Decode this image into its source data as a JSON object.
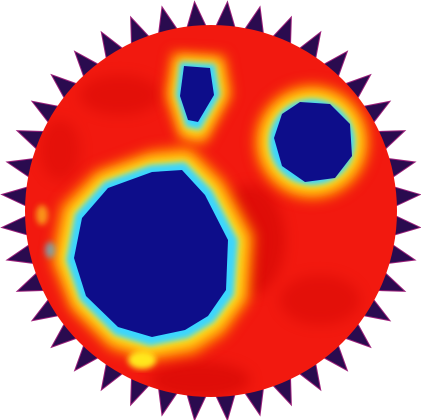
{
  "image": {
    "subject": "heatmap-disc-with-spiky-rim",
    "palette": {
      "background": "#ffffff",
      "field_red": "#f2190f",
      "field_dark_red": "#c80d08",
      "orange": "#ff7a00",
      "yellow": "#ffe81a",
      "cyan": "#3ad6ff",
      "blue": "#1a40ff",
      "navy": "#0d0d8a",
      "spike_dark": "#2a0b4f",
      "spike_tip": "#9c1f7a"
    },
    "disc": {
      "spike_count": 40
    },
    "regions": [
      {
        "name": "large-blue-region",
        "level": 0.0
      },
      {
        "name": "upper-right-blue-region",
        "level": 0.0
      },
      {
        "name": "top-blue-region",
        "level": 0.0
      },
      {
        "name": "lower-bright-spot",
        "level": 0.6
      }
    ]
  }
}
